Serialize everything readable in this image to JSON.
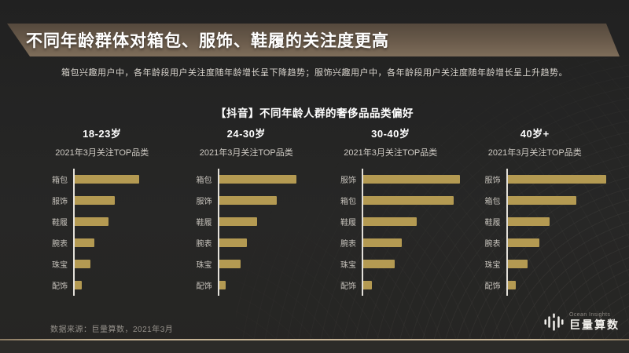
{
  "header": {
    "title": "不同年龄群体对箱包、服饰、鞋履的关注度更高",
    "subtitle": "箱包兴趣用户中，各年龄段用户关注度随年龄增长呈下降趋势；服饰兴趣用户中，各年龄段用户关注度随年龄增长呈上升趋势。"
  },
  "chart_section": {
    "title": "【抖音】不同年龄人群的奢侈品品类偏好"
  },
  "chart_data": [
    {
      "type": "bar",
      "orientation": "horizontal",
      "title": "18-23岁",
      "subtitle": "2021年3月关注TOP品类",
      "categories": [
        "箱包",
        "服饰",
        "鞋履",
        "腕表",
        "珠宝",
        "配饰"
      ],
      "values": [
        65,
        40,
        34,
        20,
        16,
        7
      ],
      "value_scale": "relative 0-100 (no numeric axis shown, estimated from bar lengths)",
      "axis": "single vertical baseline, no gridlines, no value labels"
    },
    {
      "type": "bar",
      "orientation": "horizontal",
      "title": "24-30岁",
      "subtitle": "2021年3月关注TOP品类",
      "categories": [
        "箱包",
        "服饰",
        "鞋履",
        "腕表",
        "珠宝",
        "配饰"
      ],
      "values": [
        78,
        58,
        38,
        28,
        22,
        7
      ],
      "value_scale": "relative 0-100 (no numeric axis shown, estimated from bar lengths)",
      "axis": "single vertical baseline, no gridlines, no value labels"
    },
    {
      "type": "bar",
      "orientation": "horizontal",
      "title": "30-40岁",
      "subtitle": "2021年3月关注TOP品类",
      "categories": [
        "服饰",
        "箱包",
        "鞋履",
        "腕表",
        "珠宝",
        "配饰"
      ],
      "values": [
        97,
        91,
        54,
        39,
        32,
        9
      ],
      "value_scale": "relative 0-100 (no numeric axis shown, estimated from bar lengths)",
      "axis": "single vertical baseline, no gridlines, no value labels"
    },
    {
      "type": "bar",
      "orientation": "horizontal",
      "title": "40岁+",
      "subtitle": "2021年3月关注TOP品类",
      "categories": [
        "服饰",
        "箱包",
        "鞋履",
        "腕表",
        "珠宝",
        "配饰"
      ],
      "values": [
        99,
        69,
        42,
        32,
        20,
        8
      ],
      "value_scale": "relative 0-100 (no numeric axis shown, estimated from bar lengths)",
      "axis": "single vertical baseline, no gridlines, no value labels"
    }
  ],
  "footer": {
    "source": "数据来源：巨量算数，2021年3月",
    "logo_en": "Ocean Insights",
    "logo_cn": "巨量算数",
    "logo_icon": "equalizer-bars-icon"
  },
  "colors": {
    "background": "#262626",
    "banner_top": "#55493d",
    "banner_bottom": "#7e6d5a",
    "bar": "#b49a52",
    "axis_line": "#e3e0da",
    "divider": "#c5b293",
    "text_primary": "#ffffff",
    "text_secondary": "#cfcbc4",
    "text_muted": "#94908a"
  }
}
